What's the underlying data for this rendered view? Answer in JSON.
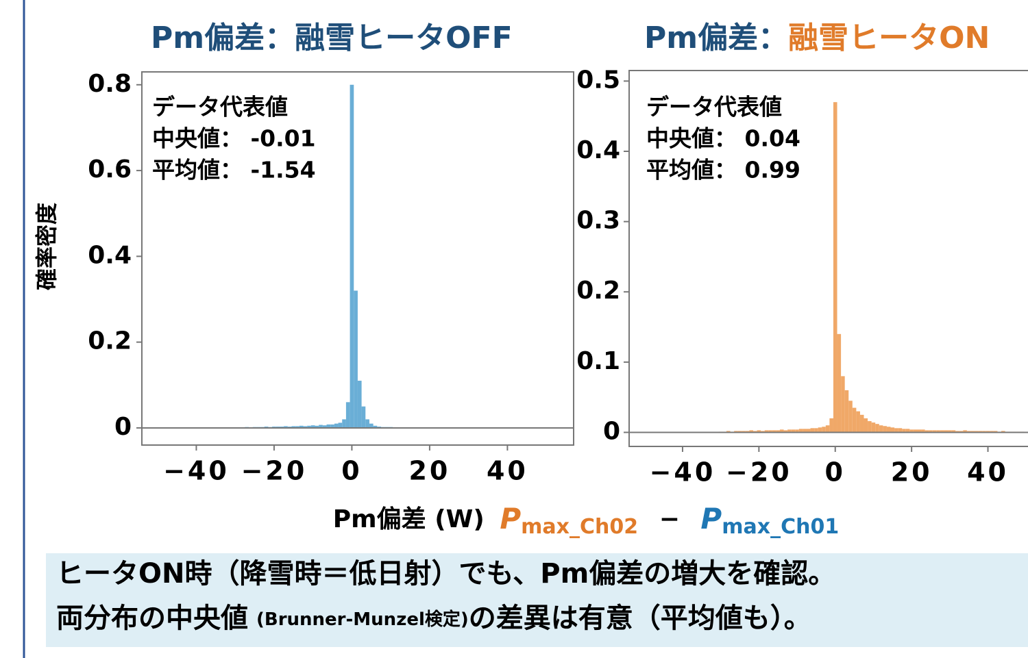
{
  "chart_data": [
    {
      "type": "histogram",
      "title": [
        "Pm偏差：",
        "融雪ヒータOFF"
      ],
      "title_colors": [
        "#1f4e79",
        "#1f4e79"
      ],
      "annotation": [
        "データ代表値",
        "中央値： -0.01",
        "平均値： -1.54"
      ],
      "color": "#6aaed6",
      "bins": [
        -30.5,
        -29.5,
        -28.5,
        -27.5,
        -26.5,
        -25.5,
        -24.5,
        -23.5,
        -22.5,
        -21.5,
        -20.5,
        -19.5,
        -18.5,
        -17.5,
        -16.5,
        -15.5,
        -14.5,
        -13.5,
        -12.5,
        -11.5,
        -10.5,
        -9.5,
        -8.5,
        -7.5,
        -6.5,
        -5.5,
        -4.5,
        -3.5,
        -2.5,
        -1.5,
        -0.5,
        0.5,
        1.5,
        2.5,
        3.5,
        4.5,
        5.5,
        6.5,
        7.5,
        8.5,
        9.5,
        10.5,
        11.5,
        12.5,
        13.5,
        14.5,
        15.5,
        16.5,
        17.5,
        18.5,
        19.5,
        20.5,
        21.5,
        22.5,
        23.5,
        24.5,
        25.5,
        26.5,
        27.5,
        28.5,
        29.5,
        30.5,
        31.5,
        32.5,
        33.5,
        34.5,
        35.5,
        36.5,
        37.5,
        38.5,
        39.5,
        40.5,
        41.5,
        42.5,
        43.5,
        44.5,
        45.5,
        46.5,
        47.5,
        48.5,
        49.5
      ],
      "values": [
        0.001,
        0.001,
        0.001,
        0.002,
        0.001,
        0.002,
        0.002,
        0.002,
        0.003,
        0.002,
        0.003,
        0.003,
        0.003,
        0.004,
        0.003,
        0.004,
        0.004,
        0.005,
        0.004,
        0.005,
        0.006,
        0.005,
        0.007,
        0.006,
        0.008,
        0.008,
        0.01,
        0.012,
        0.02,
        0.06,
        0.8,
        0.32,
        0.11,
        0.05,
        0.02,
        0.01,
        0.005,
        0.003,
        0.002,
        0.002,
        0.002,
        0.001,
        0.001,
        0.001,
        0.001,
        0.001,
        0.001,
        0.001,
        0.001,
        0.001,
        0.001,
        0.001,
        0.001,
        0.001,
        0.001,
        0.001,
        0.001,
        0.001,
        0.001,
        0.001,
        0.001,
        0.001,
        0.001,
        0.001,
        0.001,
        0,
        0,
        0,
        0,
        0,
        0,
        0,
        0,
        0,
        0,
        0,
        0,
        0,
        0,
        0
      ],
      "xlim": [
        -54,
        53.5
      ],
      "ylim": [
        -0.04,
        0.83
      ],
      "xticks": [
        {
          "value": -40,
          "label": "−40"
        },
        {
          "value": -20,
          "label": "−20"
        },
        0,
        20,
        40
      ],
      "yticks": [
        0,
        0.2,
        0.4,
        0.6,
        0.8
      ]
    },
    {
      "type": "histogram",
      "title": [
        "Pm偏差：",
        "融雪ヒータON"
      ],
      "title_colors": [
        "#1f4e79",
        "#e07b2a"
      ],
      "annotation": [
        "データ代表値",
        "中央値： 0.04",
        "平均値： 0.99"
      ],
      "color": "#f0a868",
      "bins": [
        -30.5,
        -29.5,
        -28.5,
        -27.5,
        -26.5,
        -25.5,
        -24.5,
        -23.5,
        -22.5,
        -21.5,
        -20.5,
        -19.5,
        -18.5,
        -17.5,
        -16.5,
        -15.5,
        -14.5,
        -13.5,
        -12.5,
        -11.5,
        -10.5,
        -9.5,
        -8.5,
        -7.5,
        -6.5,
        -5.5,
        -4.5,
        -3.5,
        -2.5,
        -1.5,
        -0.5,
        0.5,
        1.5,
        2.5,
        3.5,
        4.5,
        5.5,
        6.5,
        7.5,
        8.5,
        9.5,
        10.5,
        11.5,
        12.5,
        13.5,
        14.5,
        15.5,
        16.5,
        17.5,
        18.5,
        19.5,
        20.5,
        21.5,
        22.5,
        23.5,
        24.5,
        25.5,
        26.5,
        27.5,
        28.5,
        29.5,
        30.5,
        31.5,
        32.5,
        33.5,
        34.5,
        35.5,
        36.5,
        37.5,
        38.5,
        39.5,
        40.5,
        41.5,
        42.5,
        43.5,
        44.5,
        45.5,
        46.5,
        47.5,
        48.5,
        49.5
      ],
      "values": [
        0.001,
        0.001,
        0.002,
        0.001,
        0.002,
        0.002,
        0.002,
        0.002,
        0.003,
        0.002,
        0.003,
        0.002,
        0.003,
        0.003,
        0.003,
        0.003,
        0.004,
        0.003,
        0.004,
        0.004,
        0.004,
        0.005,
        0.005,
        0.005,
        0.006,
        0.006,
        0.007,
        0.008,
        0.01,
        0.02,
        0.47,
        0.14,
        0.08,
        0.06,
        0.045,
        0.035,
        0.03,
        0.025,
        0.02,
        0.016,
        0.014,
        0.012,
        0.01,
        0.009,
        0.008,
        0.007,
        0.006,
        0.006,
        0.005,
        0.005,
        0.004,
        0.004,
        0.004,
        0.004,
        0.003,
        0.003,
        0.003,
        0.003,
        0.003,
        0.003,
        0.003,
        0.003,
        0.002,
        0.002,
        0.003,
        0.002,
        0.002,
        0.002,
        0.002,
        0.002,
        0.002,
        0.002,
        0.002,
        0.001,
        0.002,
        0.001,
        0.001,
        0.001,
        0.001,
        0.001
      ],
      "xlim": [
        -54,
        50.5
      ],
      "ylim": [
        -0.02,
        0.515
      ],
      "xticks": [
        {
          "value": -40,
          "label": "−40"
        },
        {
          "value": -20,
          "label": "−20"
        },
        0,
        20,
        40
      ],
      "yticks": [
        0,
        0.1,
        0.2,
        0.3,
        0.4,
        0.5
      ]
    }
  ],
  "ylabel": "確率密度",
  "xlabel": {
    "text": "Pm偏差 (W)",
    "terms": [
      {
        "symbol": "P",
        "sub": "max_Ch02",
        "color": "#e07b2a"
      },
      {
        "symbol": "P",
        "sub": "max_Ch01",
        "color": "#1f77b4"
      }
    ],
    "operator": "−"
  },
  "note": {
    "line1": "ヒータON時（降雪時＝低日射）でも、Pm偏差の増大を確認。",
    "line2": [
      "両分布の中央値",
      "(Brunner-Munzel検定)",
      "の差異は有意（平均値も）。"
    ]
  }
}
